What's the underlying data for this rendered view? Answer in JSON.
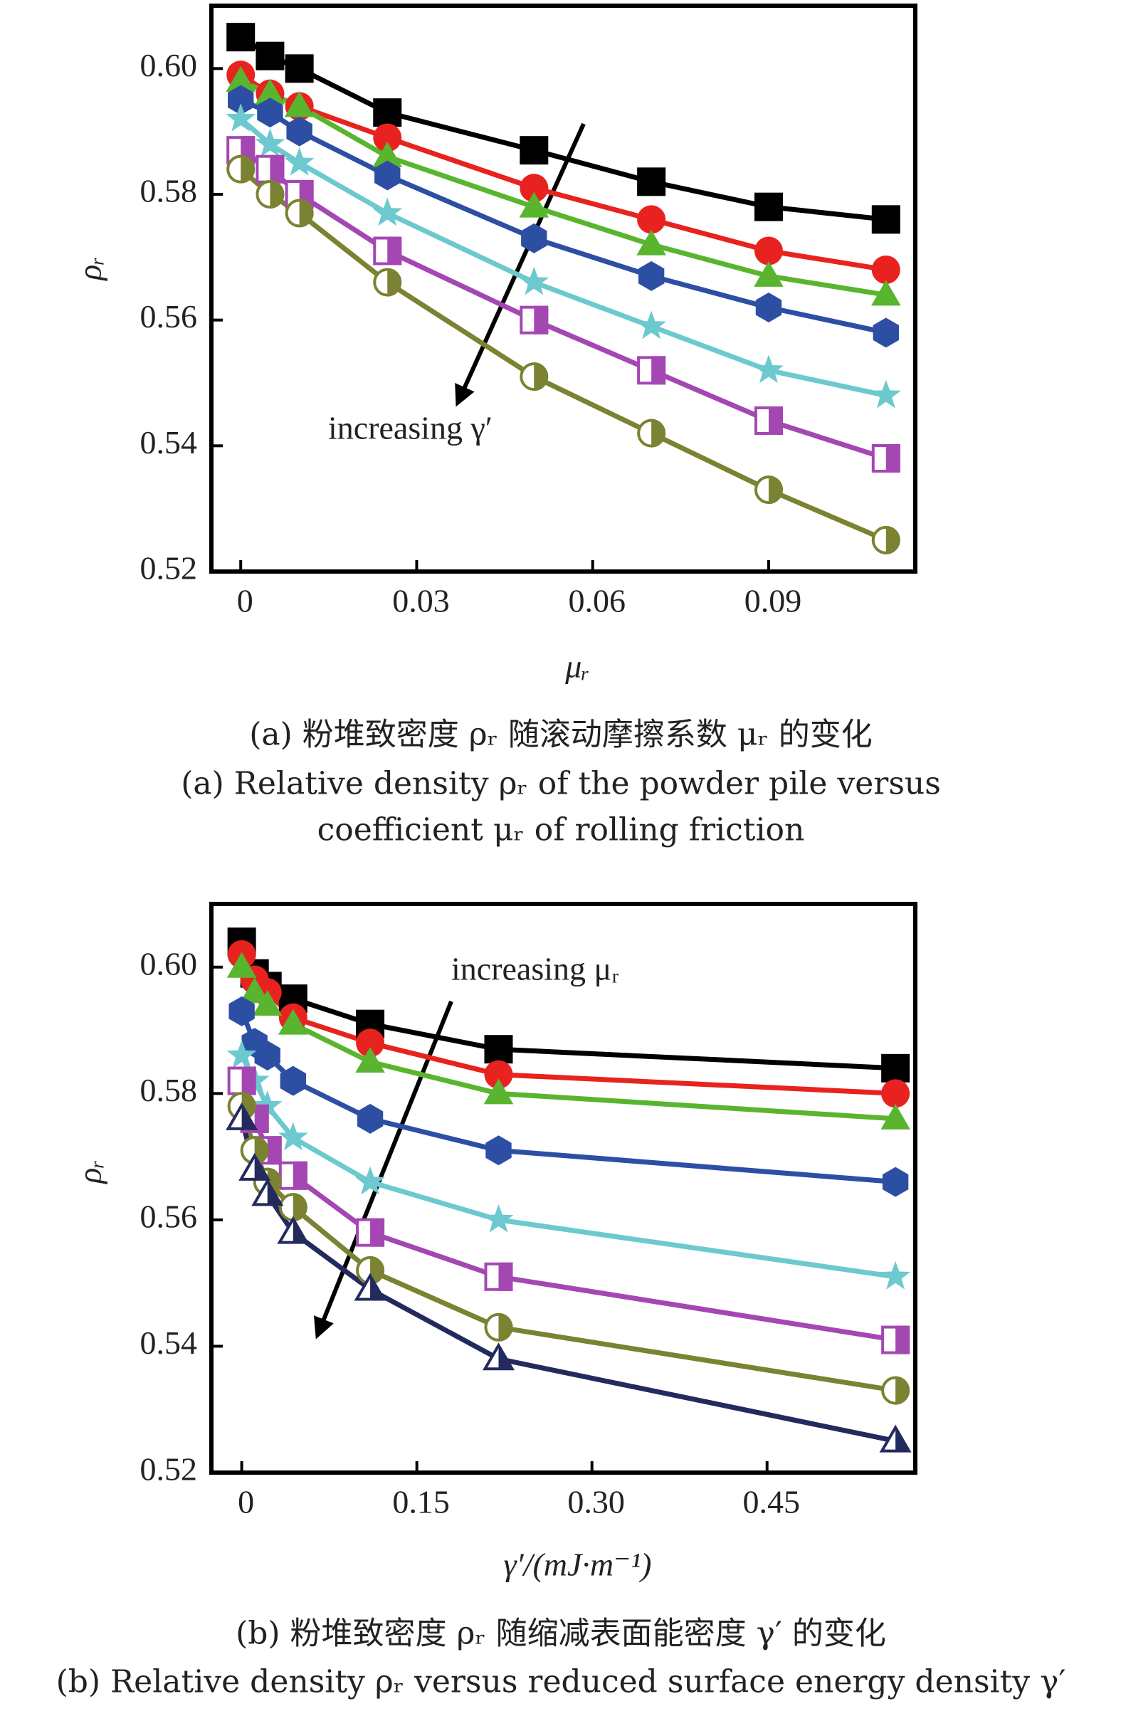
{
  "chart_data": [
    {
      "type": "line",
      "x": [
        0,
        0.005,
        0.01,
        0.025,
        0.05,
        0.07,
        0.09,
        0.11
      ],
      "xlim": [
        -0.005,
        0.115
      ],
      "xticks": [
        0,
        0.03,
        0.06,
        0.09
      ],
      "ylim": [
        0.52,
        0.61
      ],
      "yticks": [
        0.52,
        0.54,
        0.56,
        0.58,
        {
          "value": 0.6,
          "label": "0.60"
        }
      ],
      "x_label": "μᵣ",
      "y_label": "ρᵣ",
      "annotation": "increasing γ′",
      "captions": [
        "(a) 粉堆致密度 ρᵣ 随滚动摩擦系数 μᵣ 的变化",
        "(a) Relative density ρᵣ of the powder pile versus",
        "coefficient μᵣ of rolling friction"
      ],
      "series": [
        {
          "color": "#000000",
          "marker": "square",
          "values": [
            0.605,
            0.602,
            0.6,
            0.593,
            0.587,
            0.582,
            0.578,
            0.576
          ]
        },
        {
          "color": "#e8231f",
          "marker": "circle",
          "values": [
            0.599,
            0.596,
            0.594,
            0.589,
            0.581,
            0.576,
            0.571,
            0.568
          ]
        },
        {
          "color": "#5ab52e",
          "marker": "triangle",
          "values": [
            0.598,
            0.596,
            0.594,
            0.586,
            0.578,
            0.572,
            0.567,
            0.564
          ]
        },
        {
          "color": "#2d4fa3",
          "marker": "hexagon",
          "values": [
            0.595,
            0.593,
            0.59,
            0.583,
            0.573,
            0.567,
            0.562,
            0.558
          ]
        },
        {
          "color": "#6cc9cf",
          "marker": "star",
          "values": [
            0.592,
            0.588,
            0.585,
            0.577,
            0.566,
            0.559,
            0.552,
            0.548
          ]
        },
        {
          "color": "#a447b3",
          "marker": "half-square",
          "values": [
            0.587,
            0.584,
            0.58,
            0.571,
            0.56,
            0.552,
            0.544,
            0.538
          ]
        },
        {
          "color": "#7b8231",
          "marker": "half-circle",
          "values": [
            0.584,
            0.58,
            0.577,
            0.566,
            0.551,
            0.542,
            0.533,
            0.525
          ]
        }
      ]
    },
    {
      "type": "line",
      "x": [
        0,
        0.011,
        0.022,
        0.044,
        0.11,
        0.22,
        0.56
      ],
      "xlim": [
        -0.026,
        0.577
      ],
      "xticks": [
        0,
        0.15,
        {
          "value": 0.3,
          "label": "0.30"
        },
        0.45
      ],
      "ylim": [
        0.52,
        0.61
      ],
      "yticks": [
        0.52,
        0.54,
        0.56,
        0.58,
        {
          "value": 0.6,
          "label": "0.60"
        }
      ],
      "x_label": "γ′/(mJ·m⁻¹)",
      "y_label": "ρᵣ",
      "annotation": "increasing μᵣ",
      "captions": [
        "(b) 粉堆致密度 ρᵣ 随缩减表面能密度 γ′ 的变化",
        "(b) Relative density ρᵣ versus reduced surface energy density γ′"
      ],
      "series": [
        {
          "color": "#000000",
          "marker": "square",
          "values": [
            0.604,
            0.599,
            0.597,
            0.595,
            0.591,
            0.587,
            0.584
          ]
        },
        {
          "color": "#e8231f",
          "marker": "circle",
          "values": [
            0.602,
            0.598,
            0.596,
            0.592,
            0.588,
            0.583,
            0.58
          ]
        },
        {
          "color": "#5ab52e",
          "marker": "triangle",
          "values": [
            0.6,
            0.596,
            0.594,
            0.591,
            0.585,
            0.58,
            0.576
          ]
        },
        {
          "color": "#2d4fa3",
          "marker": "hexagon",
          "values": [
            0.593,
            0.588,
            0.586,
            0.582,
            0.576,
            0.571,
            0.566
          ]
        },
        {
          "color": "#6cc9cf",
          "marker": "star",
          "values": [
            0.586,
            0.582,
            0.578,
            0.573,
            0.566,
            0.56,
            0.551
          ]
        },
        {
          "color": "#a447b3",
          "marker": "half-square",
          "values": [
            0.582,
            0.576,
            0.571,
            0.567,
            0.558,
            0.551,
            0.541
          ]
        },
        {
          "color": "#7b8231",
          "marker": "half-circle",
          "values": [
            0.578,
            0.571,
            0.566,
            0.562,
            0.552,
            0.543,
            0.533
          ]
        },
        {
          "color": "#232a5e",
          "marker": "half-triangle",
          "values": [
            0.576,
            0.568,
            0.564,
            0.558,
            0.549,
            0.538,
            0.525
          ]
        }
      ]
    }
  ]
}
